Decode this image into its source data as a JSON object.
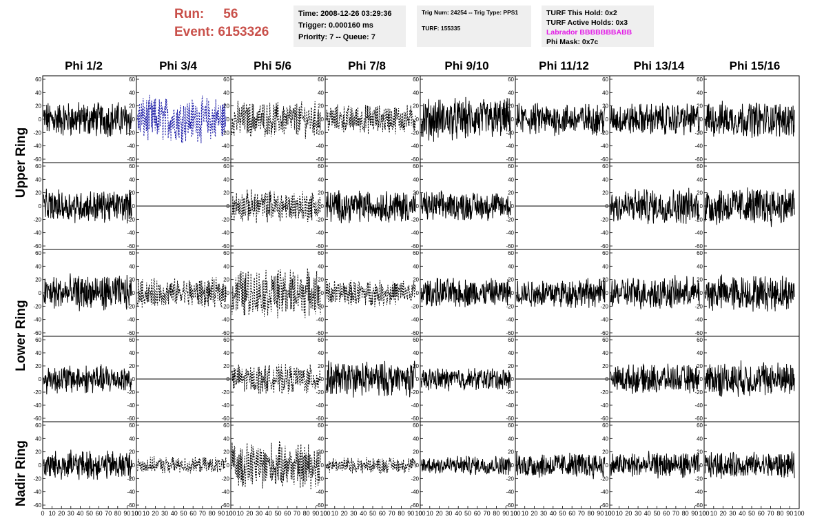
{
  "header": {
    "run_label": "Run:",
    "run_value": "56",
    "event_label": "Event:",
    "event_value": "6153326",
    "time": "Time: 2008-12-26 03:29:36",
    "trigger": "Trigger: 0.000160 ms",
    "priority": "Priority: 7 -- Queue: 7",
    "trig_num": "Trig Num: 24254 -- Trig Type: PPS1",
    "turf": "TURF: 155335",
    "turf_this_hold": "TURF This Hold: 0x2",
    "turf_active_holds": "TURF Active Holds: 0x3",
    "labrador": "Labrador BBBBBBBABB",
    "phi_mask": "Phi Mask: 0x7c"
  },
  "colors": {
    "run_text": "#c9504a",
    "info_bg": "#efefef",
    "labrador_text": "#e21ce6",
    "trace_black": "#000000",
    "trace_blue": "#1a1aa6"
  },
  "columns": [
    "Phi 1/2",
    "Phi 3/4",
    "Phi 5/6",
    "Phi 7/8",
    "Phi 9/10",
    "Phi 11/12",
    "Phi 13/14",
    "Phi 15/16"
  ],
  "rows": [
    "Upper Ring",
    "Upper Ring",
    "Lower Ring",
    "Lower Ring",
    "Nadir Ring"
  ],
  "ring_labels": [
    "Upper Ring",
    "Lower Ring",
    "Nadir Ring"
  ],
  "chart_data": {
    "type": "line",
    "ylim": [
      -60,
      60
    ],
    "xlim": [
      0,
      100
    ],
    "yticks": [
      "-60",
      "-40",
      "-20",
      "0",
      "20",
      "40",
      "60"
    ],
    "xticks": [
      "0",
      "10",
      "20",
      "30",
      "40",
      "50",
      "60",
      "70",
      "80",
      "90",
      "100"
    ],
    "panels": [
      [
        "solid",
        "blue-dashed",
        "dashed",
        "dashed",
        "solid",
        "solid",
        "solid",
        "solid"
      ],
      [
        "solid",
        "flat",
        "dashed",
        "solid",
        "solid",
        "flat",
        "solid",
        "solid"
      ],
      [
        "solid",
        "dashed",
        "dashed",
        "dashed",
        "solid",
        "solid",
        "solid",
        "solid"
      ],
      [
        "solid",
        "flat",
        "dashed",
        "solid",
        "solid",
        "flat",
        "solid",
        "solid"
      ],
      [
        "solid",
        "dashed",
        "dashed",
        "dashed",
        "solid",
        "solid",
        "solid",
        "solid"
      ]
    ],
    "amplitudes": [
      [
        22,
        28,
        22,
        18,
        26,
        20,
        20,
        22
      ],
      [
        20,
        0,
        20,
        20,
        18,
        0,
        22,
        24
      ],
      [
        22,
        18,
        30,
        16,
        18,
        18,
        20,
        22
      ],
      [
        18,
        0,
        18,
        22,
        14,
        0,
        18,
        22
      ],
      [
        18,
        10,
        28,
        10,
        12,
        16,
        16,
        16
      ]
    ]
  }
}
